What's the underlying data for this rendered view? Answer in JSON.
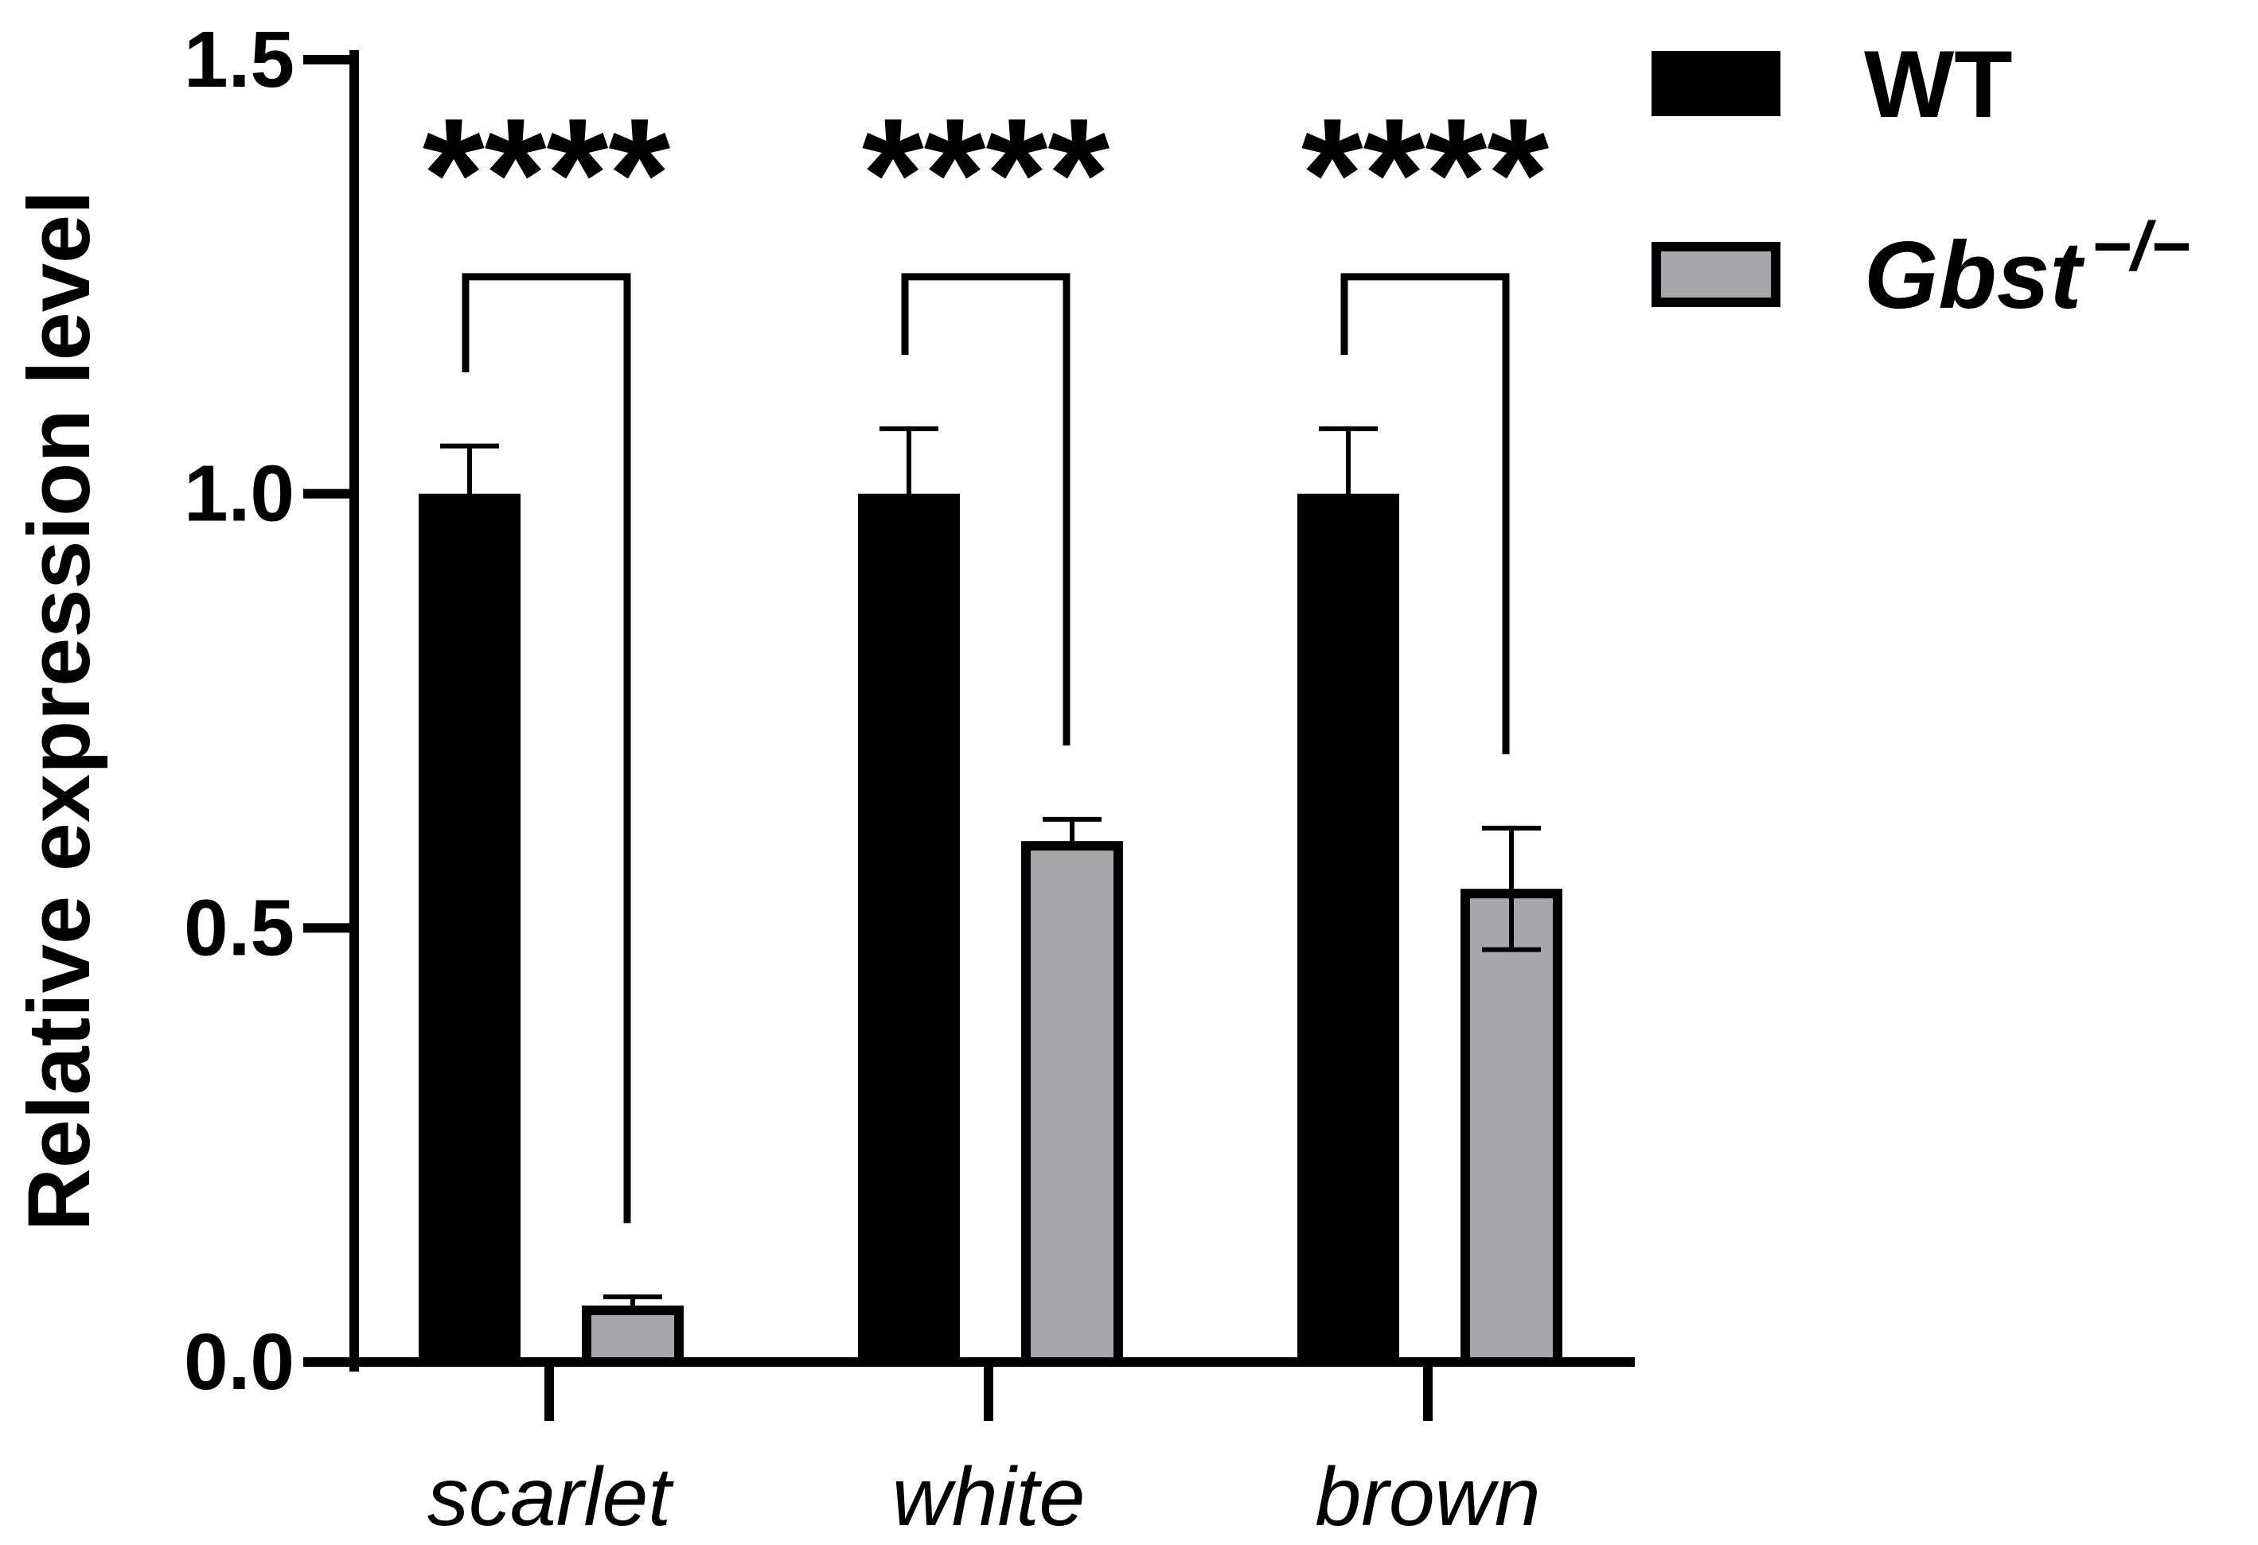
{
  "chart_data": {
    "type": "bar",
    "ylabel": "Relative expression level",
    "ylim": [
      0,
      1.5
    ],
    "yticks": [
      "0.0",
      "0.5",
      "1.0",
      "1.5"
    ],
    "categories": [
      "scarlet",
      "white",
      "brown"
    ],
    "series": [
      {
        "name": "WT",
        "values": [
          1.0,
          1.0,
          1.0
        ],
        "errors": [
          0.055,
          0.075,
          0.075
        ],
        "color": "#000000"
      },
      {
        "name": "Gbst",
        "name_superscript": "−/−",
        "values": [
          0.065,
          0.6,
          0.545
        ],
        "errors": [
          0.01,
          0.025,
          0.07
        ],
        "color": "#a7a6aa"
      }
    ],
    "significance": [
      {
        "category": "scarlet",
        "label": "****",
        "bracket_y": 1.25,
        "left_end": 1.14,
        "right_end": 0.16
      },
      {
        "category": "white",
        "label": "****",
        "bracket_y": 1.25,
        "left_end": 1.16,
        "right_end": 0.71
      },
      {
        "category": "brown",
        "label": "****",
        "bracket_y": 1.25,
        "left_end": 1.16,
        "right_end": 0.7
      }
    ],
    "legend_position": "top-right",
    "grid": false
  }
}
